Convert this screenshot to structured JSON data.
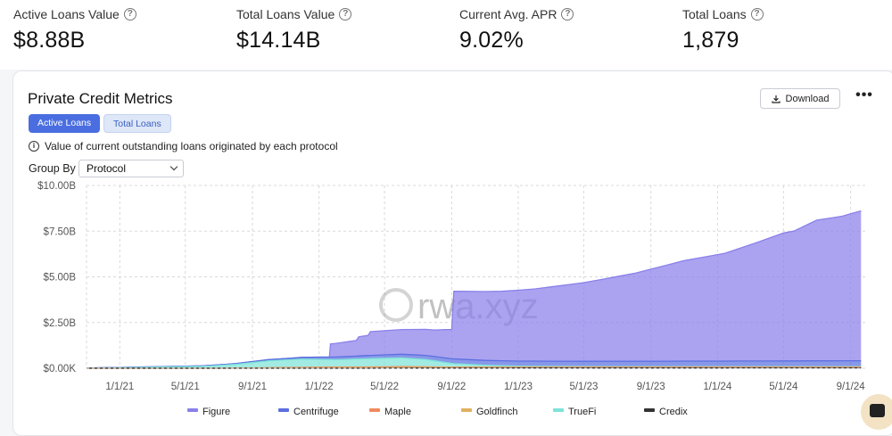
{
  "stats": [
    {
      "label": "Active Loans Value",
      "value": "$8.88B"
    },
    {
      "label": "Total Loans Value",
      "value": "$14.14B"
    },
    {
      "label": "Current Avg. APR",
      "value": "9.02%"
    },
    {
      "label": "Total Loans",
      "value": "1,879"
    }
  ],
  "card": {
    "title": "Private Credit Metrics",
    "download_label": "Download",
    "toggles": [
      "Active Loans",
      "Total Loans"
    ],
    "info": "Value of current outstanding loans originated by each protocol",
    "group_by_label": "Group By",
    "group_by_value": "Protocol",
    "watermark": "rwa.xyz"
  },
  "colors": {
    "accent": "#4a6ee0",
    "figure": "#8a80ea",
    "centrifuge": "#5b6fe0",
    "maple": "#f08a5d",
    "goldfinch": "#e0b060",
    "truefi": "#7de3d8",
    "credix": "#333333"
  },
  "chart_data": {
    "type": "area",
    "stacked": true,
    "x_tick_labels": [
      "1/1/21",
      "5/1/21",
      "9/1/21",
      "1/1/22",
      "5/1/22",
      "9/1/22",
      "1/1/23",
      "5/1/23",
      "9/1/23",
      "1/1/24",
      "5/1/24",
      "9/1/24"
    ],
    "y_tick_labels": [
      "$0.00K",
      "$2.50B",
      "$5.00B",
      "$7.50B",
      "$10.00B"
    ],
    "ylim": [
      0,
      10
    ],
    "y_unit": "B",
    "grid": true,
    "legend_position": "bottom",
    "series": [
      {
        "name": "Figure",
        "color_key": "figure",
        "points": [
          [
            "2022-01-20",
            0
          ],
          [
            "2022-01-22",
            0.72
          ],
          [
            "2022-03-10",
            0.85
          ],
          [
            "2022-03-15",
            1.05
          ],
          [
            "2022-04-01",
            1.1
          ],
          [
            "2022-04-05",
            1.3
          ],
          [
            "2022-06-01",
            1.35
          ],
          [
            "2022-08-01",
            1.45
          ],
          [
            "2022-08-20",
            1.55
          ],
          [
            "2022-09-01",
            1.6
          ],
          [
            "2022-09-05",
            3.7
          ],
          [
            "2022-12-01",
            3.8
          ],
          [
            "2023-02-01",
            3.95
          ],
          [
            "2023-05-01",
            4.3
          ],
          [
            "2023-08-01",
            4.8
          ],
          [
            "2023-11-01",
            5.5
          ],
          [
            "2024-01-15",
            5.9
          ],
          [
            "2024-03-15",
            6.5
          ],
          [
            "2024-05-01",
            7.0
          ],
          [
            "2024-05-20",
            7.1
          ],
          [
            "2024-06-10",
            7.4
          ],
          [
            "2024-07-01",
            7.7
          ],
          [
            "2024-08-15",
            7.9
          ],
          [
            "2024-09-20",
            8.2
          ]
        ]
      },
      {
        "name": "Centrifuge",
        "color_key": "centrifuge",
        "points": [
          [
            "2020-11-01",
            0.01
          ],
          [
            "2021-06-01",
            0.03
          ],
          [
            "2021-11-01",
            0.07
          ],
          [
            "2022-02-01",
            0.15
          ],
          [
            "2022-06-01",
            0.2
          ],
          [
            "2022-09-01",
            0.25
          ],
          [
            "2023-01-01",
            0.28
          ],
          [
            "2024-01-01",
            0.3
          ],
          [
            "2024-09-20",
            0.32
          ]
        ]
      },
      {
        "name": "Maple",
        "color_key": "maple",
        "points": [
          [
            "2021-07-01",
            0
          ],
          [
            "2022-01-01",
            0.03
          ],
          [
            "2022-06-01",
            0.04
          ],
          [
            "2022-09-01",
            0.02
          ],
          [
            "2023-06-01",
            0.02
          ],
          [
            "2024-09-20",
            0.03
          ]
        ]
      },
      {
        "name": "Goldfinch",
        "color_key": "goldfinch",
        "points": [
          [
            "2021-07-01",
            0
          ],
          [
            "2022-01-01",
            0.03
          ],
          [
            "2022-06-01",
            0.04
          ],
          [
            "2023-01-01",
            0.03
          ],
          [
            "2024-09-20",
            0.02
          ]
        ]
      },
      {
        "name": "TrueFi",
        "color_key": "truefi",
        "points": [
          [
            "2020-11-01",
            0
          ],
          [
            "2021-01-01",
            0.03
          ],
          [
            "2021-06-01",
            0.1
          ],
          [
            "2021-08-01",
            0.2
          ],
          [
            "2021-10-01",
            0.38
          ],
          [
            "2021-12-01",
            0.45
          ],
          [
            "2022-02-01",
            0.4
          ],
          [
            "2022-04-01",
            0.45
          ],
          [
            "2022-06-01",
            0.48
          ],
          [
            "2022-07-15",
            0.4
          ],
          [
            "2022-09-01",
            0.2
          ],
          [
            "2022-11-01",
            0.1
          ],
          [
            "2023-01-01",
            0.05
          ],
          [
            "2023-06-01",
            0.03
          ],
          [
            "2024-09-20",
            0.02
          ]
        ]
      },
      {
        "name": "Credix",
        "color_key": "credix",
        "points": [
          [
            "2022-04-01",
            0
          ],
          [
            "2022-07-01",
            0.01
          ],
          [
            "2024-09-20",
            0.02
          ]
        ]
      }
    ]
  }
}
